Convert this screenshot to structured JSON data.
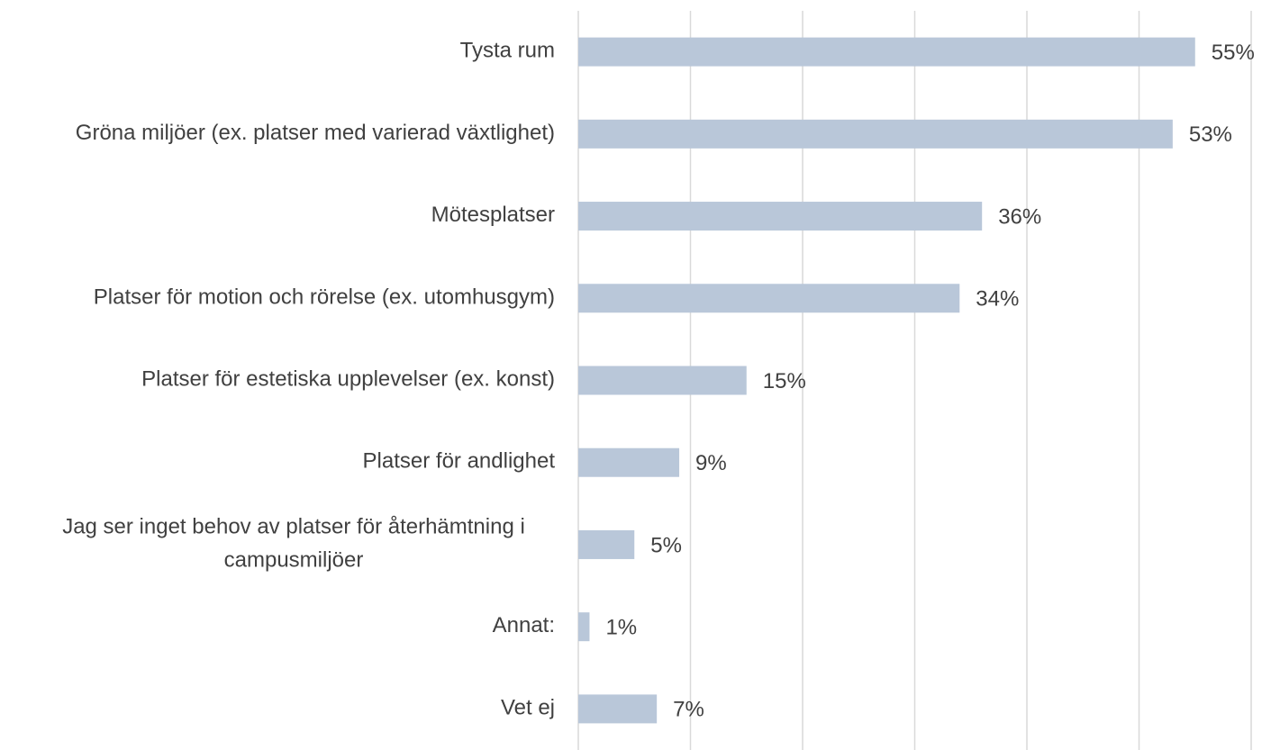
{
  "chart_data": {
    "type": "barh",
    "categories": [
      "Tysta rum",
      "Gröna miljöer (ex. platser med varierad växtlighet)",
      "Mötesplatser",
      "Platser för motion och rörelse (ex. utomhusgym)",
      "Platser för estetiska upplevelser (ex. konst)",
      "Platser för andlighet",
      "Jag ser inget behov av platser för återhämtning i campusmiljöer",
      "Annat:",
      "Vet ej"
    ],
    "values": [
      55,
      53,
      36,
      34,
      15,
      9,
      5,
      1,
      7
    ],
    "value_labels": [
      "55%",
      "53%",
      "36%",
      "34%",
      "15%",
      "9%",
      "5%",
      "1%",
      "7%"
    ],
    "color": "#b9c7d9",
    "xlim": [
      0,
      60
    ],
    "xticks": [
      0,
      10,
      20,
      30,
      40,
      50,
      60
    ],
    "grid": true
  }
}
